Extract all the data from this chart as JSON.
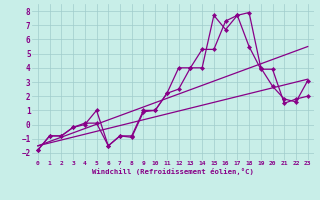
{
  "xlabel": "Windchill (Refroidissement éolien,°C)",
  "bg_color": "#c8eee8",
  "grid_color": "#a0cccc",
  "line_color": "#880088",
  "xlim": [
    -0.5,
    23.5
  ],
  "ylim": [
    -2.5,
    8.5
  ],
  "xticks": [
    0,
    1,
    2,
    3,
    4,
    5,
    6,
    7,
    8,
    9,
    10,
    11,
    12,
    13,
    14,
    15,
    16,
    17,
    18,
    19,
    20,
    21,
    22,
    23
  ],
  "yticks": [
    -2,
    -1,
    0,
    1,
    2,
    3,
    4,
    5,
    6,
    7,
    8
  ],
  "series1_x": [
    0,
    1,
    2,
    3,
    4,
    5,
    6,
    7,
    8,
    9,
    10,
    11,
    12,
    13,
    14,
    15,
    16,
    17,
    18,
    19,
    20,
    21,
    22,
    23
  ],
  "series1_y": [
    -1.8,
    -0.8,
    -0.8,
    -0.2,
    0.0,
    1.0,
    -1.5,
    -0.8,
    -0.9,
    0.9,
    1.0,
    2.2,
    2.5,
    4.0,
    4.0,
    7.7,
    6.7,
    7.7,
    7.9,
    4.0,
    2.7,
    1.8,
    1.6,
    3.1
  ],
  "series2_x": [
    0,
    1,
    2,
    3,
    4,
    5,
    6,
    7,
    8,
    9,
    10,
    11,
    12,
    13,
    14,
    15,
    16,
    17,
    18,
    19,
    20,
    21,
    22,
    23
  ],
  "series2_y": [
    -1.8,
    -0.8,
    -0.8,
    -0.2,
    0.1,
    0.1,
    -1.5,
    -0.8,
    -0.8,
    1.0,
    1.0,
    2.2,
    4.0,
    4.0,
    5.3,
    5.3,
    7.3,
    7.7,
    5.5,
    3.9,
    3.9,
    1.5,
    1.8,
    2.0
  ],
  "line1_x": [
    0,
    23
  ],
  "line1_y": [
    -1.5,
    5.5
  ],
  "line2_x": [
    0,
    23
  ],
  "line2_y": [
    -1.5,
    3.2
  ]
}
